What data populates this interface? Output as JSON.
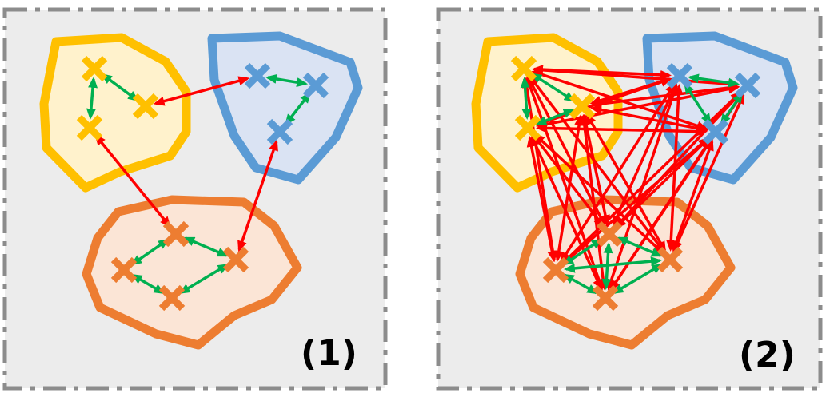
{
  "panels": [
    {
      "label": "(1)",
      "nodes": [
        {
          "id": "y1",
          "cluster": "yellow"
        },
        {
          "id": "y2",
          "cluster": "yellow"
        },
        {
          "id": "y3",
          "cluster": "yellow"
        },
        {
          "id": "b1",
          "cluster": "blue"
        },
        {
          "id": "b2",
          "cluster": "blue"
        },
        {
          "id": "b3",
          "cluster": "blue"
        },
        {
          "id": "o1",
          "cluster": "orange"
        },
        {
          "id": "o2",
          "cluster": "orange"
        },
        {
          "id": "o3",
          "cluster": "orange"
        },
        {
          "id": "o4",
          "cluster": "orange"
        }
      ],
      "intra_edges": [
        [
          "y1",
          "y2"
        ],
        [
          "y1",
          "y3"
        ],
        [
          "b1",
          "b2"
        ],
        [
          "b2",
          "b3"
        ],
        [
          "o1",
          "o2"
        ],
        [
          "o1",
          "o4"
        ],
        [
          "o2",
          "o3"
        ],
        [
          "o3",
          "o4"
        ]
      ],
      "inter_edges": [
        [
          "y2",
          "b1"
        ],
        [
          "y3",
          "o1"
        ],
        [
          "b3",
          "o2"
        ]
      ]
    },
    {
      "label": "(2)",
      "nodes": [
        {
          "id": "y1",
          "cluster": "yellow"
        },
        {
          "id": "y2",
          "cluster": "yellow"
        },
        {
          "id": "y3",
          "cluster": "yellow"
        },
        {
          "id": "b1",
          "cluster": "blue"
        },
        {
          "id": "b2",
          "cluster": "blue"
        },
        {
          "id": "b3",
          "cluster": "blue"
        },
        {
          "id": "o1",
          "cluster": "orange"
        },
        {
          "id": "o2",
          "cluster": "orange"
        },
        {
          "id": "o3",
          "cluster": "orange"
        },
        {
          "id": "o4",
          "cluster": "orange"
        }
      ],
      "intra_edges": "complete-within-cluster",
      "inter_edges": "complete-between-clusters"
    }
  ],
  "colors": {
    "panel_bg": "#ececec",
    "panel_border": "#8c8c8c",
    "yellow_fill": "#fff2cc",
    "yellow_stroke": "#ffc000",
    "blue_fill": "#dae3f3",
    "blue_stroke": "#5b9bd5",
    "orange_fill": "#fbe5d6",
    "orange_stroke": "#ed7d31",
    "intra_edge": "#00b050",
    "inter_edge": "#ff0000"
  }
}
